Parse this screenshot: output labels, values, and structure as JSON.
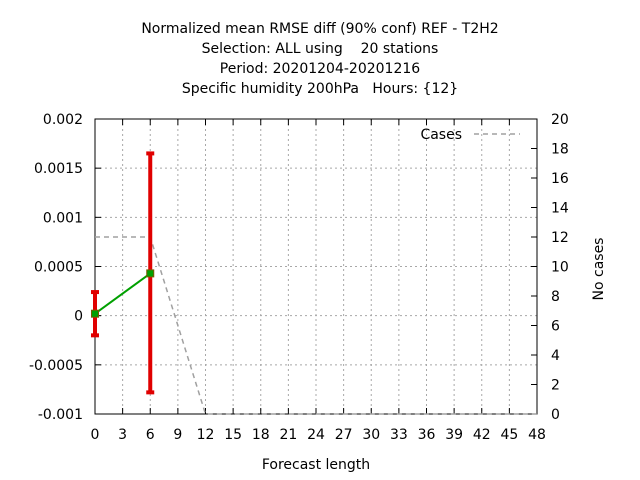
{
  "chart_data": {
    "type": "line",
    "title_lines": [
      "Normalized mean RMSE diff (90% conf) REF - T2H2",
      "Selection: ALL using    20 stations",
      "Period: 20201204-20201216",
      "Specific humidity 200hPa   Hours: {12}"
    ],
    "xlabel": "Forecast length",
    "ylabel": "",
    "y2label": "No cases",
    "xlim": [
      0,
      48
    ],
    "ylim": [
      -0.001,
      0.002
    ],
    "y2lim": [
      0,
      20
    ],
    "x_ticks": [
      0,
      3,
      6,
      9,
      12,
      15,
      18,
      21,
      24,
      27,
      30,
      33,
      36,
      39,
      42,
      45,
      48
    ],
    "y_ticks": [
      -0.001,
      -0.0005,
      0,
      0.0005,
      0.001,
      0.0015,
      0.002
    ],
    "y_tick_labels": [
      "-0.001",
      "-0.0005",
      "0",
      "0.0005",
      "0.001",
      "0.0015",
      "0.002"
    ],
    "y2_ticks": [
      0,
      2,
      4,
      6,
      8,
      10,
      12,
      14,
      16,
      18,
      20
    ],
    "grid": true,
    "legend": {
      "position": "top-right",
      "entries": [
        "Cases"
      ]
    },
    "series": [
      {
        "name": "",
        "color": "#00a000",
        "x": [
          0,
          6
        ],
        "y": [
          2e-05,
          0.00043
        ],
        "error_low": [
          -0.0002,
          -0.00078
        ],
        "error_high": [
          0.00024,
          0.00165
        ],
        "error_color": "#e00000"
      },
      {
        "name": "Cases",
        "axis": "y2",
        "color": "#a0a0a0",
        "dashed": true,
        "x": [
          0,
          6,
          12,
          18,
          24,
          30,
          36,
          42,
          48
        ],
        "y": [
          12,
          12,
          0,
          0,
          0,
          0,
          0,
          0,
          0
        ]
      }
    ]
  }
}
